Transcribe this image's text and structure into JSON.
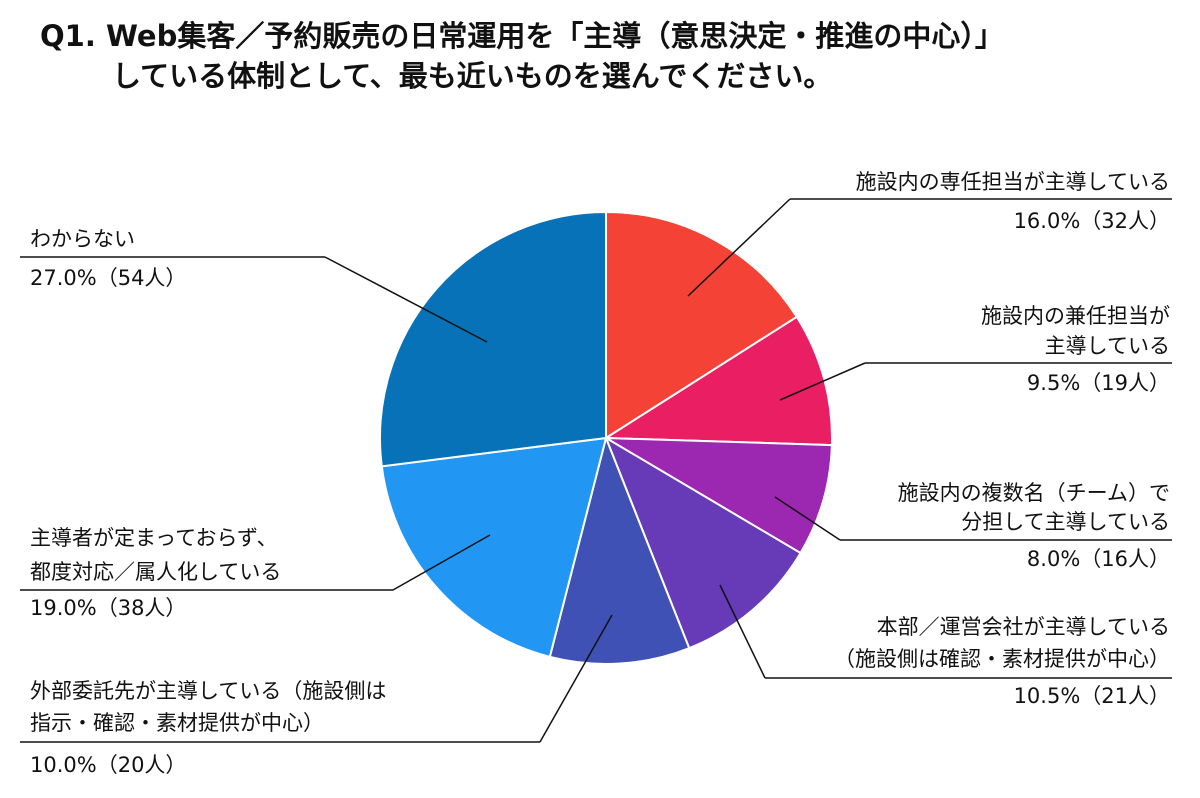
{
  "chart_data": {
    "type": "pie",
    "title": [
      "Q1. Web集客／予約販売の日常運用を「主導（意思決定・推進の中心）」",
      "している体制として、最も近いものを選んでください。"
    ],
    "categories": [
      [
        "施設内の専任担当が主導している"
      ],
      [
        "施設内の兼任担当が",
        "主導している"
      ],
      [
        "施設内の複数名（チーム）で",
        "分担して主導している"
      ],
      [
        "本部／運営会社が主導している",
        "（施設側は確認・素材提供が中心）"
      ],
      [
        "外部委託先が主導している（施設側は",
        "指示・確認・素材提供が中心）"
      ],
      [
        "主導者が定まっておらず、",
        "都度対応／属人化している"
      ],
      [
        "わからない"
      ]
    ],
    "values": [
      16.0,
      9.5,
      8.0,
      10.5,
      10.0,
      19.0,
      27.0
    ],
    "value_labels": [
      "16.0%（32人）",
      "9.5%（19人）",
      "8.0%（16人）",
      "10.5%（21人）",
      "10.0%（20人）",
      "19.0%（38人）",
      "27.0%（54人）"
    ],
    "colors": [
      "#f44336",
      "#e91e63",
      "#9c27b0",
      "#673ab7",
      "#3f51b5",
      "#2196f3",
      "#0872b8"
    ]
  }
}
